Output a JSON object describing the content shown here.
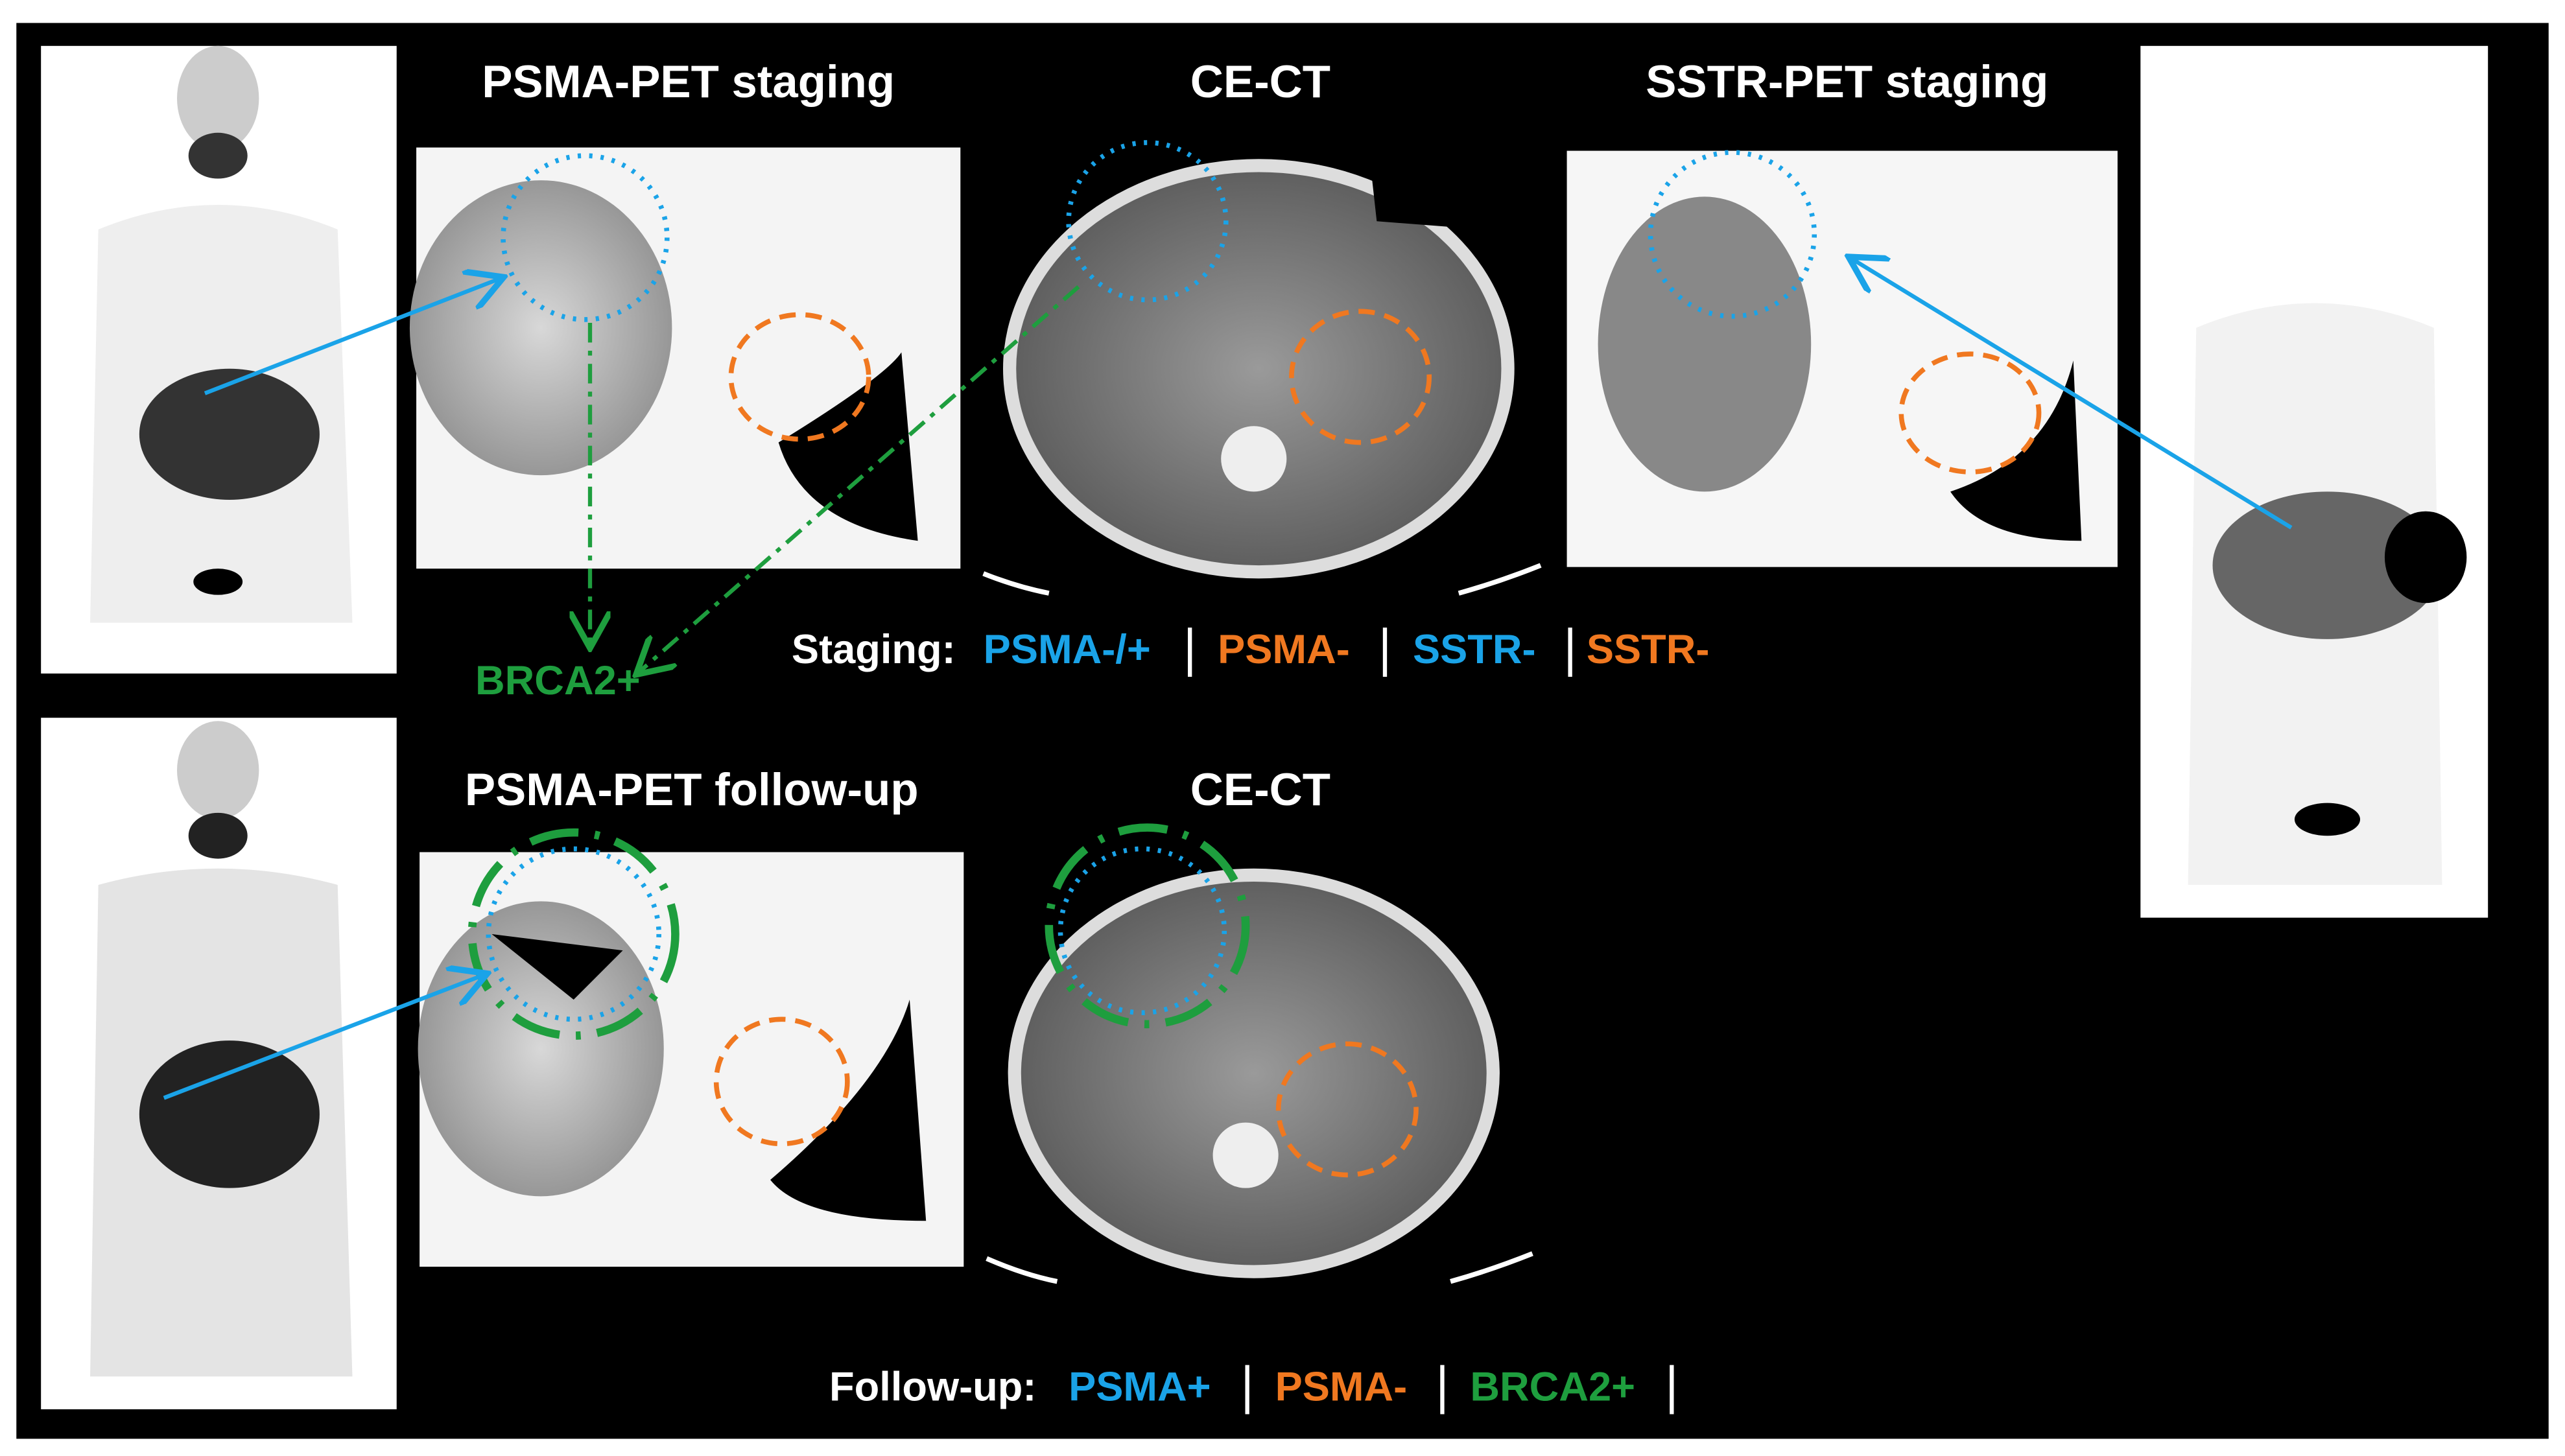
{
  "titles": {
    "psma_staging": "PSMA-PET staging",
    "ce_ct_staging": "CE-CT",
    "sstr_staging": "SSTR-PET staging",
    "psma_followup": "PSMA-PET follow-up",
    "ce_ct_followup": "CE-CT"
  },
  "annotation": "BRCA2+",
  "staging_legend": {
    "label": "Staging:",
    "items": [
      "PSMA-/+",
      "PSMA-",
      "SSTR-",
      "SSTR-"
    ]
  },
  "followup_legend": {
    "label": "Follow-up:",
    "items": [
      "PSMA+",
      "PSMA-",
      "BRCA2+"
    ]
  }
}
